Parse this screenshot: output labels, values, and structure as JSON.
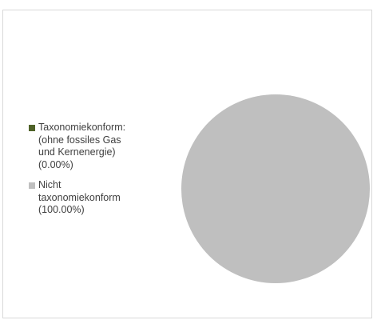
{
  "chart_data": {
    "type": "pie",
    "title": "",
    "slices": [
      {
        "label": "Taxonomiekonform:\n(ohne fossiles Gas\nund Kernenergie)\n(0.00%)",
        "value": 0.0,
        "color": "#4f6228"
      },
      {
        "label": "Nicht\ntaxonomiekonform\n(100.00%)",
        "value": 100.0,
        "color": "#bfbfbf"
      }
    ],
    "legend_position": "left"
  }
}
